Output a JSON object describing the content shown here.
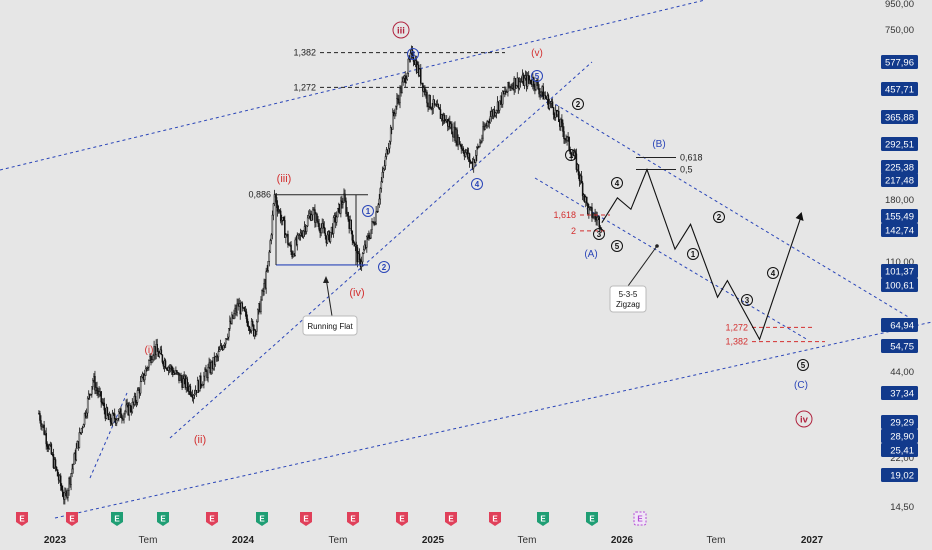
{
  "chart_data": {
    "type": "candlestick",
    "y_scale": "log",
    "ylim": [
      13.5,
      950
    ],
    "y_ticks": [
      "950,00",
      "750,00",
      "180,00",
      "110,00",
      "44,00",
      "22,00",
      "14,50"
    ],
    "price_badges": [
      "577,96",
      "457,71",
      "365,88",
      "292,51",
      "225,38",
      "217,48",
      "155,49",
      "142,74",
      "101,37",
      "100,61",
      "64,94",
      "54,75",
      "37,34",
      "29,29",
      "28,90",
      "25,41",
      "19,02"
    ],
    "x_ticks": [
      {
        "label": "2023",
        "bold": true
      },
      {
        "label": "Tem",
        "bold": false
      },
      {
        "label": "2024",
        "bold": true
      },
      {
        "label": "Tem",
        "bold": false
      },
      {
        "label": "2025",
        "bold": true
      },
      {
        "label": "Tem",
        "bold": false
      },
      {
        "label": "2026",
        "bold": true
      },
      {
        "label": "Tem",
        "bold": false
      },
      {
        "label": "2027",
        "bold": true
      }
    ],
    "anchors": [
      {
        "date": "2022-12-01",
        "price": 30
      },
      {
        "date": "2023-01-20",
        "price": 14.5
      },
      {
        "date": "2023-03-15",
        "price": 40
      },
      {
        "date": "2023-04-15",
        "price": 28
      },
      {
        "date": "2023-06-01",
        "price": 32
      },
      {
        "date": "2023-07-10",
        "price": 52
      },
      {
        "date": "2023-08-20",
        "price": 42
      },
      {
        "date": "2023-09-25",
        "price": 36
      },
      {
        "date": "2023-11-10",
        "price": 48
      },
      {
        "date": "2023-12-20",
        "price": 75
      },
      {
        "date": "2024-01-20",
        "price": 60
      },
      {
        "date": "2024-02-15",
        "price": 100
      },
      {
        "date": "2024-02-28",
        "price": 190
      },
      {
        "date": "2024-04-01",
        "price": 115
      },
      {
        "date": "2024-05-10",
        "price": 165
      },
      {
        "date": "2024-06-10",
        "price": 130
      },
      {
        "date": "2024-07-10",
        "price": 185
      },
      {
        "date": "2024-08-10",
        "price": 105
      },
      {
        "date": "2024-09-10",
        "price": 160
      },
      {
        "date": "2024-10-15",
        "price": 380
      },
      {
        "date": "2024-11-20",
        "price": 630
      },
      {
        "date": "2024-12-20",
        "price": 420
      },
      {
        "date": "2025-02-01",
        "price": 340
      },
      {
        "date": "2025-03-15",
        "price": 245
      },
      {
        "date": "2025-04-15",
        "price": 360
      },
      {
        "date": "2025-06-01",
        "price": 490
      },
      {
        "date": "2025-07-10",
        "price": 500
      },
      {
        "date": "2025-08-20",
        "price": 390
      },
      {
        "date": "2025-10-01",
        "price": 250
      },
      {
        "date": "2025-10-25",
        "price": 165
      },
      {
        "date": "2025-11-20",
        "price": 150
      }
    ],
    "projection": [
      {
        "date": "2025-11-20",
        "price": 150
      },
      {
        "date": "2025-12-20",
        "price": 185
      },
      {
        "date": "2026-01-15",
        "price": 168
      },
      {
        "date": "2026-02-15",
        "price": 235
      },
      {
        "date": "2026-04-10",
        "price": 120
      },
      {
        "date": "2026-05-10",
        "price": 148
      },
      {
        "date": "2026-07-01",
        "price": 80
      },
      {
        "date": "2026-07-20",
        "price": 92
      },
      {
        "date": "2026-09-20",
        "price": 56
      },
      {
        "date": "2026-12-10",
        "price": 160
      }
    ],
    "fib_levels": [
      {
        "label": "1,382",
        "price": 630,
        "color": "#222"
      },
      {
        "label": "1,272",
        "price": 470,
        "color": "#222"
      },
      {
        "label": "0,886",
        "price": 190,
        "color": "#222"
      },
      {
        "label": "0,618",
        "price": 260,
        "color": "#222"
      },
      {
        "label": "0,5",
        "price": 235,
        "color": "#222"
      },
      {
        "label": "1,618",
        "price": 160,
        "color": "#d32f2f"
      },
      {
        "label": "2",
        "price": 140,
        "color": "#d32f2f"
      },
      {
        "label": "1,272",
        "price": 62,
        "color": "#d32f2f"
      },
      {
        "label": "1,382",
        "price": 55,
        "color": "#d32f2f"
      }
    ],
    "wave_labels": [
      {
        "text": "iii",
        "style": "circle",
        "color": "#b0243f"
      },
      {
        "text": "3",
        "style": "circle",
        "color": "#2a45b8"
      },
      {
        "text": "(v)",
        "style": "plain",
        "color": "#d32f2f"
      },
      {
        "text": "5",
        "style": "circle",
        "color": "#2a45b8"
      },
      {
        "text": "2",
        "style": "circle",
        "color": "#111"
      },
      {
        "text": "(B)",
        "style": "plain",
        "color": "#2a45b8"
      },
      {
        "text": "(iii)",
        "style": "plain",
        "color": "#d32f2f"
      },
      {
        "text": "1",
        "style": "circle",
        "color": "#2a45b8"
      },
      {
        "text": "1",
        "style": "circle",
        "color": "#111"
      },
      {
        "text": "4",
        "style": "circle",
        "color": "#111"
      },
      {
        "text": "4",
        "style": "circle",
        "color": "#2a45b8"
      },
      {
        "text": "3",
        "style": "circle",
        "color": "#111"
      },
      {
        "text": "5",
        "style": "circle",
        "color": "#111"
      },
      {
        "text": "(A)",
        "style": "plain",
        "color": "#2a45b8"
      },
      {
        "text": "2",
        "style": "circle",
        "color": "#2a45b8"
      },
      {
        "text": "(iv)",
        "style": "plain",
        "color": "#d32f2f"
      },
      {
        "text": "(i)",
        "style": "plain",
        "color": "#d32f2f"
      },
      {
        "text": "(ii)",
        "style": "plain",
        "color": "#d32f2f"
      },
      {
        "text": "2",
        "style": "circle",
        "color": "#111"
      },
      {
        "text": "1",
        "style": "circle",
        "color": "#111"
      },
      {
        "text": "4",
        "style": "circle",
        "color": "#111"
      },
      {
        "text": "3",
        "style": "circle",
        "color": "#111"
      },
      {
        "text": "5",
        "style": "circle",
        "color": "#111"
      },
      {
        "text": "(C)",
        "style": "plain",
        "color": "#2a45b8"
      },
      {
        "text": "iv",
        "style": "circle",
        "color": "#b0243f"
      }
    ],
    "annotations": {
      "running_flat": "Running Flat",
      "zigzag_line1": "5-3-5",
      "zigzag_line2": "Zigzag"
    },
    "event_markers": [
      {
        "letter": "E",
        "kind": "earnings",
        "color": "#e0405a"
      },
      {
        "letter": "E",
        "kind": "earnings",
        "color": "#e0405a"
      },
      {
        "letter": "E",
        "kind": "earnings",
        "color": "#1f9e74"
      },
      {
        "letter": "E",
        "kind": "earnings",
        "color": "#1f9e74"
      },
      {
        "letter": "E",
        "kind": "earnings",
        "color": "#e0405a"
      },
      {
        "letter": "E",
        "kind": "earnings",
        "color": "#1f9e74"
      },
      {
        "letter": "E",
        "kind": "earnings",
        "color": "#e0405a"
      },
      {
        "letter": "E",
        "kind": "earnings",
        "color": "#e0405a"
      },
      {
        "letter": "E",
        "kind": "earnings",
        "color": "#e0405a"
      },
      {
        "letter": "E",
        "kind": "earnings",
        "color": "#e0405a"
      },
      {
        "letter": "E",
        "kind": "earnings",
        "color": "#e0405a"
      },
      {
        "letter": "E",
        "kind": "earnings",
        "color": "#1f9e74"
      },
      {
        "letter": "E",
        "kind": "earnings",
        "color": "#1f9e74"
      },
      {
        "letter": "E",
        "kind": "upcoming",
        "color": "#b44cd6"
      }
    ],
    "colors": {
      "background": "#e6e6e6",
      "candles": "#111111",
      "channel_lines": "#2a45b8",
      "badge_bg": "#123a8c",
      "badge_text": "#ffffff"
    }
  }
}
